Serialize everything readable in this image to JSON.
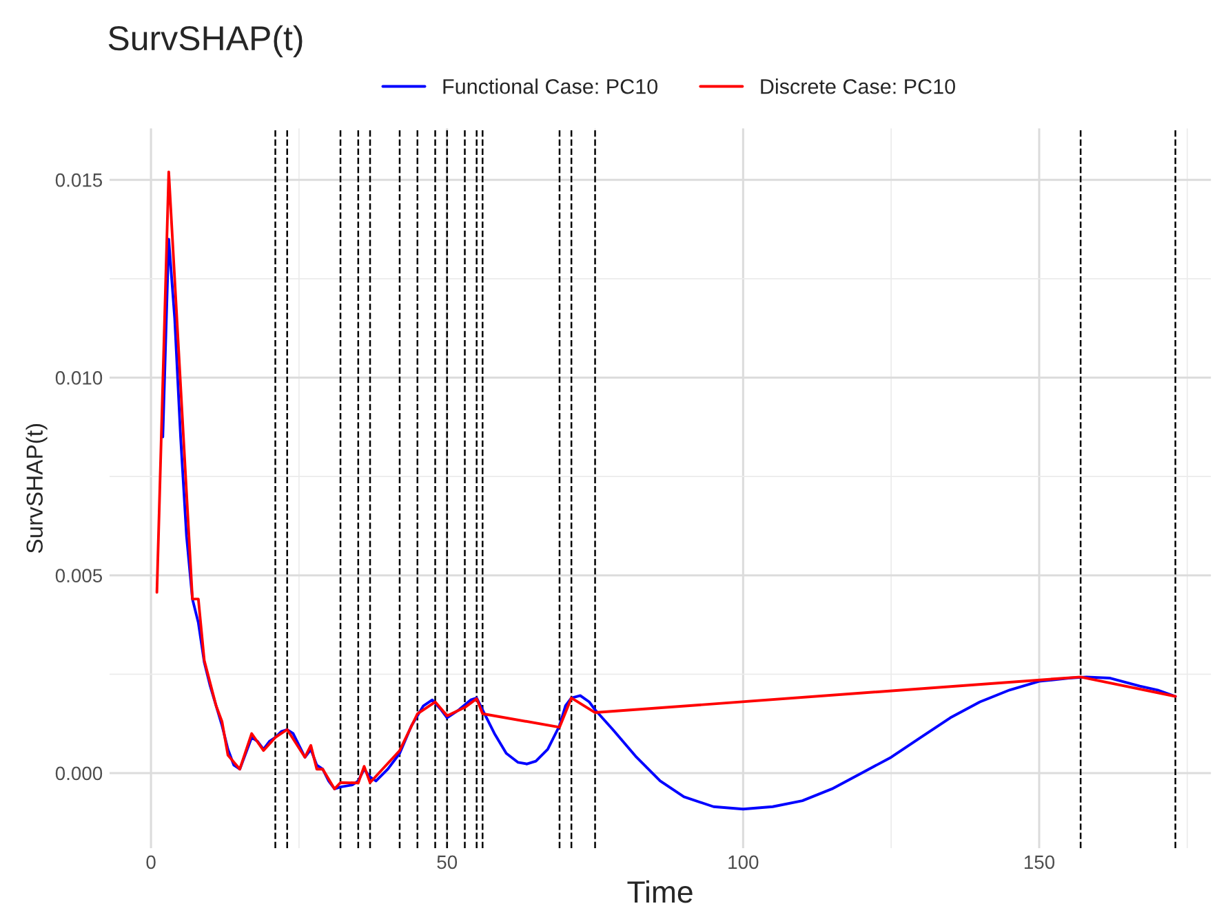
{
  "chart_data": {
    "type": "line",
    "title": "SurvSHAP(t)",
    "xlabel": "Time",
    "ylabel": "SurvSHAP(t)",
    "series": [
      {
        "name": "Functional Case: PC10",
        "color": "#0000ff",
        "x": [
          2,
          3,
          4,
          5,
          6,
          7,
          8,
          9,
          10,
          11,
          12,
          13,
          14,
          15,
          16,
          17,
          18,
          19,
          20,
          21,
          22,
          23,
          24,
          25,
          26,
          27,
          28,
          29,
          30,
          31,
          32,
          34,
          35,
          36,
          37,
          38,
          40,
          42,
          44,
          46,
          47.5,
          49,
          50,
          52,
          54,
          55,
          56,
          58,
          60,
          62,
          63.5,
          65,
          67,
          69,
          70,
          71,
          72.5,
          74,
          75,
          78,
          82,
          86,
          90,
          95,
          100,
          105,
          110,
          115,
          120,
          125,
          130,
          135,
          140,
          145,
          150,
          155,
          158,
          162,
          167,
          170,
          173
        ],
        "values": [
          0.0085,
          0.0135,
          0.0115,
          0.0085,
          0.006,
          0.0044,
          0.0038,
          0.0028,
          0.0022,
          0.0017,
          0.0012,
          0.0006,
          0.0002,
          0.0001,
          0.0005,
          0.0009,
          0.0008,
          0.0006,
          0.0008,
          0.0009,
          0.00105,
          0.0011,
          0.001,
          0.0007,
          0.0004,
          0.0006,
          0.0002,
          0.0001,
          -0.0002,
          -0.0004,
          -0.00035,
          -0.0003,
          -0.0002,
          0.0001,
          -0.0001,
          -0.0002,
          0.0001,
          0.0005,
          0.0012,
          0.0017,
          0.00185,
          0.0016,
          0.0014,
          0.0016,
          0.00185,
          0.0019,
          0.0016,
          0.001,
          0.0005,
          0.00027,
          0.00023,
          0.0003,
          0.0006,
          0.0012,
          0.0017,
          0.0019,
          0.00196,
          0.0018,
          0.0016,
          0.0011,
          0.0004,
          -0.0002,
          -0.0006,
          -0.00085,
          -0.00091,
          -0.00085,
          -0.0007,
          -0.0004,
          0.0,
          0.0004,
          0.0009,
          0.0014,
          0.0018,
          0.0021,
          0.00232,
          0.0024,
          0.00243,
          0.0024,
          0.0022,
          0.0021,
          0.00194
        ]
      },
      {
        "name": "Discrete Case: PC10",
        "color": "#ff0000",
        "x": [
          1,
          3,
          7,
          8,
          9,
          11,
          12,
          13,
          15,
          17,
          19,
          21,
          23,
          26,
          27,
          28,
          29,
          31,
          32,
          35,
          36,
          37,
          42,
          45,
          48,
          50,
          53,
          55,
          56,
          69,
          71,
          75,
          157,
          173
        ],
        "values": [
          0.00457,
          0.0152,
          0.0044,
          0.0044,
          0.00285,
          0.0017,
          0.0013,
          0.00045,
          0.0001,
          0.001,
          0.00057,
          0.0009,
          0.0011,
          0.0004,
          0.0007,
          0.0001,
          0.0001,
          -0.0004,
          -0.00024,
          -0.00025,
          0.00017,
          -0.00024,
          0.00057,
          0.0015,
          0.0018,
          0.00145,
          0.00166,
          0.00188,
          0.0015,
          0.00116,
          0.0019,
          0.00153,
          0.00243,
          0.00194
        ]
      }
    ],
    "ref_lines": [
      {
        "axis": "x",
        "value": 21,
        "color": "#000000",
        "line_style": "dashed"
      },
      {
        "axis": "x",
        "value": 23,
        "color": "#000000",
        "line_style": "dashed"
      },
      {
        "axis": "x",
        "value": 32,
        "color": "#000000",
        "line_style": "dashed"
      },
      {
        "axis": "x",
        "value": 35,
        "color": "#000000",
        "line_style": "dashed"
      },
      {
        "axis": "x",
        "value": 37,
        "color": "#000000",
        "line_style": "dashed"
      },
      {
        "axis": "x",
        "value": 42,
        "color": "#000000",
        "line_style": "dashed"
      },
      {
        "axis": "x",
        "value": 45,
        "color": "#000000",
        "line_style": "dashed"
      },
      {
        "axis": "x",
        "value": 48,
        "color": "#000000",
        "line_style": "dashed"
      },
      {
        "axis": "x",
        "value": 50,
        "color": "#000000",
        "line_style": "dashed"
      },
      {
        "axis": "x",
        "value": 53,
        "color": "#000000",
        "line_style": "dashed"
      },
      {
        "axis": "x",
        "value": 55,
        "color": "#000000",
        "line_style": "dashed"
      },
      {
        "axis": "x",
        "value": 56,
        "color": "#000000",
        "line_style": "dashed"
      },
      {
        "axis": "x",
        "value": 69,
        "color": "#000000",
        "line_style": "dashed"
      },
      {
        "axis": "x",
        "value": 71,
        "color": "#000000",
        "line_style": "dashed"
      },
      {
        "axis": "x",
        "value": 75,
        "color": "#000000",
        "line_style": "dashed"
      },
      {
        "axis": "x",
        "value": 157,
        "color": "#000000",
        "line_style": "dashed"
      },
      {
        "axis": "x",
        "value": 173,
        "color": "#000000",
        "line_style": "dashed"
      }
    ],
    "xlim": [
      -7,
      179
    ],
    "ylim": [
      -0.0019,
      0.0163
    ],
    "xticks": [
      0,
      50,
      100,
      150
    ],
    "yticks": [
      {
        "value": 0,
        "label": "0.000"
      },
      {
        "value": 0.005,
        "label": "0.005"
      },
      {
        "value": 0.01,
        "label": "0.010"
      },
      {
        "value": 0.015,
        "label": "0.015"
      }
    ],
    "grid": true,
    "legend": "top",
    "marker": "none",
    "line_style": "solid"
  }
}
